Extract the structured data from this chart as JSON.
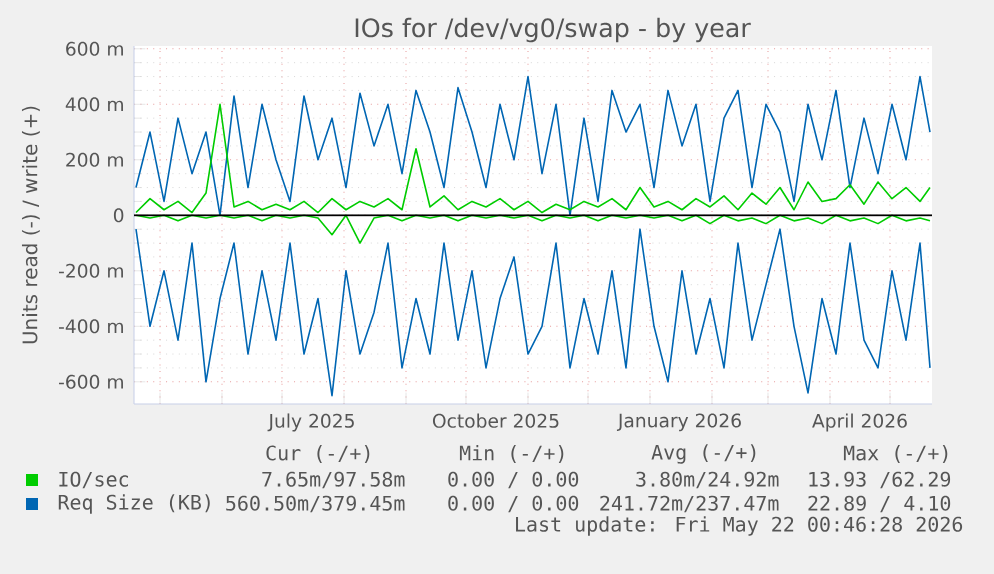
{
  "chart_data": {
    "type": "line",
    "title": "IOs for /dev/vg0/swap - by year",
    "ylabel": "Units read (-) / write (+)",
    "x": [
      "2025-04-19",
      "2025-04-26",
      "2025-05-03",
      "2025-05-10",
      "2025-05-17",
      "2025-05-24",
      "2025-05-31",
      "2025-06-07",
      "2025-06-14",
      "2025-06-21",
      "2025-06-28",
      "2025-07-05",
      "2025-07-12",
      "2025-07-19",
      "2025-07-26",
      "2025-08-02",
      "2025-08-09",
      "2025-08-16",
      "2025-08-23",
      "2025-08-30",
      "2025-09-06",
      "2025-09-13",
      "2025-09-20",
      "2025-09-27",
      "2025-10-04",
      "2025-10-11",
      "2025-10-18",
      "2025-10-25",
      "2025-11-01",
      "2025-11-08",
      "2025-11-15",
      "2025-11-22",
      "2025-11-29",
      "2025-12-06",
      "2025-12-13",
      "2025-12-20",
      "2025-12-27",
      "2026-01-03",
      "2026-01-10",
      "2026-01-17",
      "2026-01-24",
      "2026-01-31",
      "2026-02-07",
      "2026-02-14",
      "2026-02-21",
      "2026-02-28",
      "2026-03-07",
      "2026-03-14",
      "2026-03-21",
      "2026-03-28",
      "2026-04-04",
      "2026-04-11",
      "2026-04-18",
      "2026-04-25",
      "2026-05-02",
      "2026-05-09",
      "2026-05-16",
      "2026-05-21"
    ],
    "series": [
      {
        "name": "IO/sec",
        "color": "#00cc00",
        "values": [
          10,
          60,
          20,
          50,
          10,
          80,
          400,
          30,
          50,
          20,
          40,
          20,
          50,
          10,
          60,
          20,
          50,
          30,
          60,
          20,
          240,
          30,
          70,
          20,
          50,
          30,
          60,
          20,
          50,
          10,
          40,
          20,
          50,
          30,
          60,
          20,
          100,
          30,
          50,
          20,
          60,
          30,
          70,
          20,
          80,
          40,
          100,
          20,
          120,
          50,
          60,
          110,
          40,
          120,
          60,
          100,
          50,
          100
        ]
      },
      {
        "color": "#00cc00",
        "values": [
          0,
          -10,
          0,
          -20,
          0,
          -10,
          0,
          -10,
          0,
          -20,
          0,
          -10,
          0,
          -10,
          -70,
          0,
          -100,
          -10,
          0,
          -20,
          0,
          -10,
          0,
          -20,
          0,
          -10,
          0,
          -10,
          0,
          -20,
          0,
          -10,
          0,
          -20,
          0,
          -10,
          0,
          -10,
          0,
          -20,
          0,
          -30,
          0,
          -20,
          -10,
          -30,
          0,
          -20,
          -10,
          -30,
          0,
          -20,
          -10,
          -30,
          0,
          -20,
          -10,
          -20
        ]
      },
      {
        "name": "Req Size (KB)",
        "color": "#0066b3",
        "values": [
          100,
          300,
          50,
          350,
          150,
          300,
          0,
          430,
          100,
          400,
          200,
          50,
          430,
          200,
          350,
          100,
          440,
          250,
          400,
          150,
          450,
          300,
          100,
          460,
          300,
          100,
          400,
          200,
          500,
          150,
          400,
          0,
          350,
          50,
          450,
          300,
          400,
          100,
          450,
          250,
          400,
          50,
          350,
          450,
          100,
          400,
          300,
          50,
          400,
          200,
          450,
          100,
          350,
          150,
          400,
          200,
          500,
          300
        ]
      },
      {
        "color": "#0066b3",
        "values": [
          -50,
          -400,
          -200,
          -450,
          -100,
          -600,
          -300,
          -100,
          -500,
          -200,
          -450,
          -100,
          -500,
          -300,
          -650,
          -200,
          -500,
          -350,
          -100,
          -550,
          -300,
          -500,
          -100,
          -450,
          -200,
          -550,
          -300,
          -150,
          -500,
          -400,
          -100,
          -550,
          -300,
          -500,
          -200,
          -550,
          -50,
          -400,
          -600,
          -200,
          -500,
          -300,
          -550,
          -100,
          -450,
          -250,
          -50,
          -400,
          -640,
          -300,
          -500,
          -100,
          -450,
          -550,
          -200,
          -450,
          -100,
          -550
        ]
      }
    ],
    "xlim": [
      "2025-04-18",
      "2026-05-22"
    ],
    "xticks": [
      {
        "value": "2025-05-01",
        "label": null
      },
      {
        "value": "2025-06-01",
        "label": null
      },
      {
        "value": "2025-07-01",
        "label": null
      },
      {
        "value": "2025-07-16",
        "label": "July 2025"
      },
      {
        "value": "2025-08-01",
        "label": null
      },
      {
        "value": "2025-09-01",
        "label": null
      },
      {
        "value": "2025-10-01",
        "label": null
      },
      {
        "value": "2025-10-16",
        "label": "October 2025"
      },
      {
        "value": "2025-11-01",
        "label": null
      },
      {
        "value": "2025-12-01",
        "label": null
      },
      {
        "value": "2026-01-01",
        "label": null
      },
      {
        "value": "2026-01-16",
        "label": "January 2026"
      },
      {
        "value": "2026-02-01",
        "label": null
      },
      {
        "value": "2026-03-01",
        "label": null
      },
      {
        "value": "2026-04-01",
        "label": null
      },
      {
        "value": "2026-04-16",
        "label": "April 2026"
      },
      {
        "value": "2026-05-01",
        "label": null
      }
    ],
    "ylim": [
      -680,
      610
    ],
    "yticks": [
      {
        "value": -600,
        "label": "-600 m"
      },
      {
        "value": -400,
        "label": "-400 m"
      },
      {
        "value": -200,
        "label": "-200 m"
      },
      0,
      {
        "value": 200,
        "label": "200 m"
      },
      {
        "value": 400,
        "label": "400 m"
      },
      {
        "value": 600,
        "label": "600 m"
      }
    ],
    "grid": true,
    "legend": "bottom",
    "ref_lines": [
      {
        "axis": "y",
        "value": 0,
        "color": "#000000"
      }
    ],
    "annotations": [
      "Cur (-/+)",
      "Min (-/+)",
      "Avg (-/+)",
      "Max (-/+)",
      "7.65m/97.58m",
      "0.00 / 0.00",
      "3.80m/24.92m",
      "13.93 /62.29",
      "560.50m/379.45m",
      "0.00 / 0.00",
      "241.72m/237.47m",
      "22.89 / 4.10",
      "Last update: Fri May 22 00:46:28 2026"
    ]
  }
}
